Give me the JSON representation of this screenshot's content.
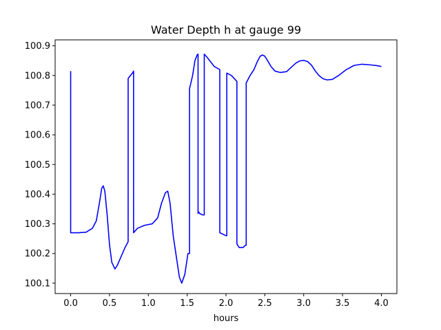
{
  "chart_data": {
    "type": "line",
    "title": "Water Depth h at gauge 99",
    "xlabel": "hours",
    "ylabel": "",
    "xlim": [
      -0.2,
      4.2
    ],
    "ylim": [
      100.065,
      100.92
    ],
    "x_ticks": [
      0.0,
      0.5,
      1.0,
      1.5,
      2.0,
      2.5,
      3.0,
      3.5,
      4.0
    ],
    "x_tick_labels": [
      "0.0",
      "0.5",
      "1.0",
      "1.5",
      "2.0",
      "2.5",
      "3.0",
      "3.5",
      "4.0"
    ],
    "y_ticks": [
      100.1,
      100.2,
      100.3,
      100.4,
      100.5,
      100.6,
      100.7,
      100.8,
      100.9
    ],
    "y_tick_labels": [
      "100.1",
      "100.2",
      "100.3",
      "100.4",
      "100.5",
      "100.6",
      "100.7",
      "100.8",
      "100.9"
    ],
    "grid": false,
    "series": [
      {
        "color": "#0000ff",
        "x": [
          0.0,
          0.0,
          0.0,
          0.1,
          0.2,
          0.28,
          0.33,
          0.37,
          0.4,
          0.42,
          0.44,
          0.47,
          0.5,
          0.53,
          0.57,
          0.6,
          0.65,
          0.7,
          0.74,
          0.74,
          0.8,
          0.81,
          0.81,
          0.86,
          0.95,
          1.05,
          1.12,
          1.17,
          1.22,
          1.25,
          1.28,
          1.32,
          1.36,
          1.4,
          1.43,
          1.47,
          1.51,
          1.53,
          1.53,
          1.57,
          1.6,
          1.63,
          1.64,
          1.64,
          1.65,
          1.66,
          1.7,
          1.72,
          1.72,
          1.76,
          1.85,
          1.92,
          1.92,
          2.0,
          2.01,
          2.01,
          2.07,
          2.14,
          2.14,
          2.17,
          2.22,
          2.25,
          2.26,
          2.26,
          2.31,
          2.36,
          2.4,
          2.44,
          2.47,
          2.5,
          2.54,
          2.58,
          2.63,
          2.7,
          2.78,
          2.85,
          2.9,
          2.95,
          3.0,
          3.05,
          3.1,
          3.15,
          3.2,
          3.25,
          3.3,
          3.37,
          3.45,
          3.55,
          3.65,
          3.75,
          3.85,
          3.95,
          4.0
        ],
        "y": [
          100.815,
          100.815,
          100.27,
          100.27,
          100.272,
          100.285,
          100.31,
          100.37,
          100.42,
          100.428,
          100.41,
          100.33,
          100.23,
          100.17,
          100.148,
          100.16,
          100.19,
          100.22,
          100.24,
          100.79,
          100.81,
          100.815,
          100.27,
          100.285,
          100.295,
          100.3,
          100.32,
          100.37,
          100.405,
          100.41,
          100.37,
          100.26,
          100.19,
          100.12,
          100.1,
          100.13,
          100.2,
          100.2,
          100.755,
          100.8,
          100.85,
          100.87,
          100.872,
          100.335,
          100.34,
          100.335,
          100.33,
          100.33,
          100.872,
          100.86,
          100.83,
          100.82,
          100.27,
          100.26,
          100.26,
          100.808,
          100.8,
          100.78,
          100.232,
          100.22,
          100.22,
          100.228,
          100.228,
          100.775,
          100.8,
          100.82,
          100.845,
          100.865,
          100.869,
          100.865,
          100.848,
          100.83,
          100.815,
          100.81,
          100.813,
          100.83,
          100.842,
          100.849,
          100.851,
          100.847,
          100.835,
          100.815,
          100.799,
          100.789,
          100.785,
          100.787,
          100.8,
          100.82,
          100.834,
          100.838,
          100.836,
          100.833,
          100.83
        ]
      }
    ]
  }
}
